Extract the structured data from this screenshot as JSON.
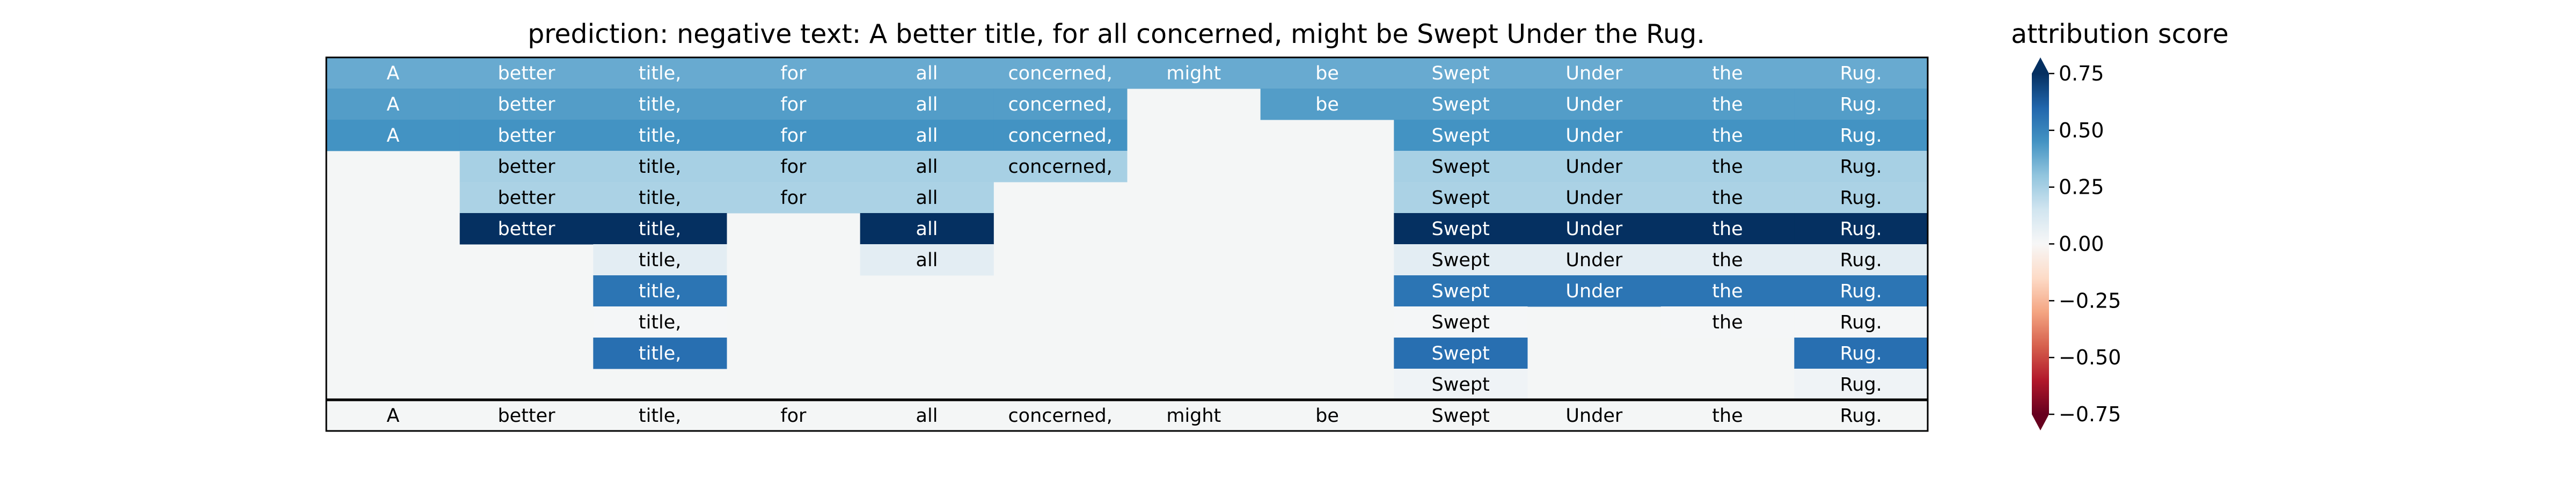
{
  "chart_data": {
    "type": "heatmap",
    "title": "prediction:  negative     text:  A better title, for all concerned, might be Swept Under the Rug.",
    "columns": [
      "A",
      "better",
      "title,",
      "for",
      "all",
      "concerned,",
      "might",
      "be",
      "Swept",
      "Under",
      "the",
      "Rug."
    ],
    "rows": [
      {
        "tokens": [
          "A",
          "better",
          "title,",
          "for",
          "all",
          "concerned,",
          "might",
          "be",
          "Swept",
          "Under",
          "the",
          "Rug."
        ],
        "scores": [
          0.38,
          0.38,
          0.38,
          0.38,
          0.38,
          0.38,
          0.38,
          0.38,
          0.38,
          0.38,
          0.38,
          0.38
        ]
      },
      {
        "tokens": [
          "A",
          "better",
          "title,",
          "for",
          "all",
          "concerned,",
          null,
          "be",
          "Swept",
          "Under",
          "the",
          "Rug."
        ],
        "scores": [
          0.42,
          0.42,
          0.42,
          0.42,
          0.42,
          0.42,
          null,
          0.42,
          0.42,
          0.42,
          0.42,
          0.42
        ]
      },
      {
        "tokens": [
          "A",
          "better",
          "title,",
          "for",
          "all",
          "concerned,",
          null,
          null,
          "Swept",
          "Under",
          "the",
          "Rug."
        ],
        "scores": [
          0.45,
          0.45,
          0.45,
          0.45,
          0.45,
          0.45,
          null,
          null,
          0.45,
          0.45,
          0.45,
          0.45
        ]
      },
      {
        "tokens": [
          null,
          "better",
          "title,",
          "for",
          "all",
          "concerned,",
          null,
          null,
          "Swept",
          "Under",
          "the",
          "Rug."
        ],
        "scores": [
          null,
          0.25,
          0.25,
          0.25,
          0.25,
          0.25,
          null,
          null,
          0.25,
          0.25,
          0.25,
          0.25
        ]
      },
      {
        "tokens": [
          null,
          "better",
          "title,",
          "for",
          "all",
          null,
          null,
          null,
          "Swept",
          "Under",
          "the",
          "Rug."
        ],
        "scores": [
          null,
          0.24,
          0.24,
          0.24,
          0.24,
          null,
          null,
          null,
          0.24,
          0.24,
          0.24,
          0.24
        ]
      },
      {
        "tokens": [
          null,
          "better",
          "title,",
          null,
          "all",
          null,
          null,
          null,
          "Swept",
          "Under",
          "the",
          "Rug."
        ],
        "scores": [
          null,
          0.8,
          0.8,
          null,
          0.8,
          null,
          null,
          null,
          0.8,
          0.8,
          0.8,
          0.8
        ]
      },
      {
        "tokens": [
          null,
          null,
          "title,",
          null,
          "all",
          null,
          null,
          null,
          "Swept",
          "Under",
          "the",
          "Rug."
        ],
        "scores": [
          null,
          null,
          0.08,
          null,
          0.08,
          null,
          null,
          null,
          0.08,
          0.08,
          0.08,
          0.08
        ]
      },
      {
        "tokens": [
          null,
          null,
          "title,",
          null,
          null,
          null,
          null,
          null,
          "Swept",
          "Under",
          "the",
          "Rug."
        ],
        "scores": [
          null,
          null,
          0.55,
          null,
          null,
          null,
          null,
          null,
          0.55,
          0.55,
          0.55,
          0.55
        ]
      },
      {
        "tokens": [
          null,
          null,
          "title,",
          null,
          null,
          null,
          null,
          null,
          "Swept",
          null,
          "the",
          "Rug."
        ],
        "scores": [
          null,
          null,
          0.01,
          null,
          null,
          null,
          null,
          null,
          0.01,
          null,
          0.01,
          0.01
        ]
      },
      {
        "tokens": [
          null,
          null,
          "title,",
          null,
          null,
          null,
          null,
          null,
          "Swept",
          null,
          null,
          "Rug."
        ],
        "scores": [
          null,
          null,
          0.57,
          null,
          null,
          null,
          null,
          null,
          0.57,
          null,
          null,
          0.57
        ]
      },
      {
        "tokens": [
          null,
          null,
          null,
          null,
          null,
          null,
          null,
          null,
          "Swept",
          null,
          null,
          "Rug."
        ],
        "scores": [
          null,
          null,
          null,
          null,
          null,
          null,
          null,
          null,
          0.03,
          null,
          null,
          0.03
        ]
      }
    ],
    "bottom_row": [
      "A",
      "better",
      "title,",
      "for",
      "all",
      "concerned,",
      "might",
      "be",
      "Swept",
      "Under",
      "the",
      "Rug."
    ],
    "colorbar": {
      "label": "attribution score",
      "colormap": "RdBu",
      "range": [
        -0.75,
        0.75
      ],
      "ticks": [
        0.75,
        0.5,
        0.25,
        0.0,
        -0.25,
        -0.5,
        -0.75
      ],
      "tick_labels": [
        "0.75",
        "0.50",
        "0.25",
        "0.00",
        "−0.25",
        "−0.50",
        "−0.75"
      ],
      "extend": "both"
    },
    "background_color": "#f4f6f6",
    "grid": false
  }
}
